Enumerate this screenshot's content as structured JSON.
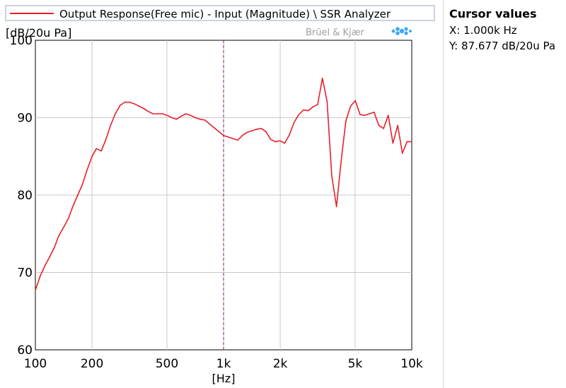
{
  "legend": {
    "label": "Output Response(Free mic) - Input (Magnitude) \\ SSR Analyzer",
    "color": "#e8202c"
  },
  "brand": {
    "text": "Brüel & Kjær",
    "logo_icon": "bk-logo-icon",
    "color": "#3fa9f5"
  },
  "cursor": {
    "title": "Cursor values",
    "x_text": "X: 1.000k Hz",
    "y_text": "Y: 87.677 dB/20u Pa",
    "x_value": 1000,
    "line_color": "#7a1f6b"
  },
  "chart_data": {
    "type": "line",
    "title": "",
    "xlabel": "[Hz]",
    "ylabel": "[dB/20u Pa]",
    "xscale": "log",
    "xlim": [
      100,
      10000
    ],
    "ylim": [
      60,
      100
    ],
    "grid": true,
    "legend_position": "top",
    "x_ticks": [
      {
        "value": 100,
        "label": "100"
      },
      {
        "value": 200,
        "label": "200"
      },
      {
        "value": 500,
        "label": "500"
      },
      {
        "value": 1000,
        "label": "1k"
      },
      {
        "value": 2000,
        "label": "2k"
      },
      {
        "value": 5000,
        "label": "5k"
      },
      {
        "value": 10000,
        "label": "10k"
      }
    ],
    "y_ticks": [
      {
        "value": 60,
        "label": "60"
      },
      {
        "value": 70,
        "label": "70"
      },
      {
        "value": 80,
        "label": "80"
      },
      {
        "value": 90,
        "label": "90"
      },
      {
        "value": 100,
        "label": "100"
      }
    ],
    "series": [
      {
        "name": "Output Response(Free mic) - Input (Magnitude) \\ SSR Analyzer",
        "color": "#e8202c",
        "x": [
          100,
          106,
          112,
          119,
          126,
          133,
          141,
          150,
          158,
          168,
          178,
          188,
          200,
          211,
          224,
          237,
          251,
          266,
          282,
          299,
          316,
          335,
          355,
          376,
          398,
          422,
          447,
          473,
          501,
          531,
          562,
          596,
          631,
          668,
          708,
          750,
          794,
          841,
          891,
          944,
          1000,
          1059,
          1122,
          1189,
          1259,
          1334,
          1413,
          1496,
          1585,
          1679,
          1778,
          1884,
          1995,
          2113,
          2239,
          2371,
          2512,
          2661,
          2818,
          2985,
          3162,
          3350,
          3548,
          3758,
          3981,
          4217,
          4467,
          4732,
          5012,
          5309,
          5623,
          5957,
          6310,
          6683,
          7079,
          7499,
          7943,
          8414,
          8913,
          9441,
          10000
        ],
        "y": [
          67.7,
          69.5,
          70.8,
          72.0,
          73.2,
          74.7,
          75.8,
          77.0,
          78.5,
          80.0,
          81.4,
          83.2,
          85.0,
          86.0,
          85.7,
          87.2,
          89.0,
          90.5,
          91.6,
          92.0,
          92.0,
          91.8,
          91.5,
          91.2,
          90.8,
          90.5,
          90.5,
          90.5,
          90.3,
          90.0,
          89.8,
          90.2,
          90.5,
          90.3,
          90.0,
          89.8,
          89.7,
          89.2,
          88.7,
          88.2,
          87.7,
          87.5,
          87.3,
          87.1,
          87.7,
          88.1,
          88.3,
          88.5,
          88.6,
          88.2,
          87.2,
          86.9,
          87.0,
          86.7,
          87.8,
          89.4,
          90.4,
          91.0,
          90.9,
          91.4,
          91.7,
          95.1,
          92.1,
          82.5,
          78.5,
          84.5,
          89.6,
          91.5,
          92.2,
          90.4,
          90.3,
          90.5,
          90.7,
          89.0,
          88.6,
          90.3,
          86.7,
          89.0,
          85.4,
          86.9,
          86.9
        ]
      }
    ]
  }
}
